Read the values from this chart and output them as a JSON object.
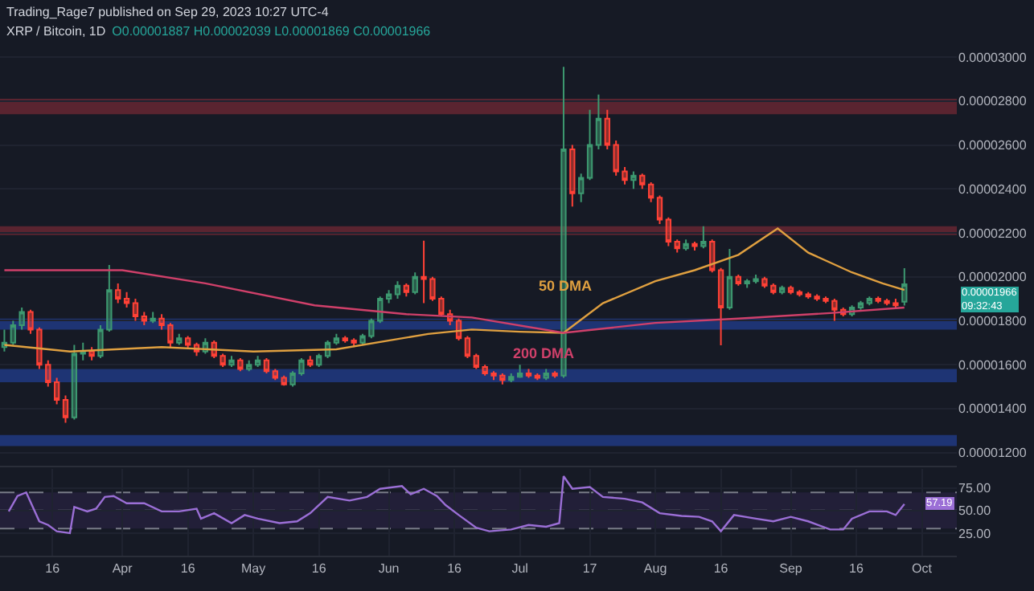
{
  "chart_data": [
    {
      "type": "candlestick",
      "title": "XRP / Bitcoin, 1D",
      "subtitle": "O0.00001887 H0.00002039 L0.00001869 C0.00001966",
      "annotations": [
        "Trading_Rage7 published on Sep 29, 2023 10:27 UTC-4",
        "0.00001966",
        "09:32:43"
      ],
      "xlim": [
        "2023-03-04",
        "2023-10-09"
      ],
      "ylim": [
        1.14e-05,
        3.26e-05
      ],
      "yticks": [
        {
          "value": 1.2e-05,
          "label": "0.00001200"
        },
        {
          "value": 1.4e-05,
          "label": "0.00001400"
        },
        {
          "value": 1.6e-05,
          "label": "0.00001600"
        },
        {
          "value": 1.8e-05,
          "label": "0.00001800"
        },
        {
          "value": 2e-05,
          "label": "0.00002000"
        },
        {
          "value": 2.2e-05,
          "label": "0.00002200"
        },
        {
          "value": 2.4e-05,
          "label": "0.00002400"
        },
        {
          "value": 2.6e-05,
          "label": "0.00002600"
        },
        {
          "value": 2.8e-05,
          "label": "0.00002800"
        },
        {
          "value": 3e-05,
          "label": "0.00003000"
        }
      ],
      "tick_labels": "y",
      "grid": true,
      "bands": [
        {
          "axis": "y",
          "from": 2.74e-05,
          "to": 2.81e-05,
          "color": "#5a2430"
        },
        {
          "axis": "y",
          "from": 2.19e-05,
          "to": 2.23e-05,
          "color": "#5a2430"
        },
        {
          "axis": "y",
          "from": 1.76e-05,
          "to": 1.81e-05,
          "color": "#1e3474"
        },
        {
          "axis": "y",
          "from": 1.52e-05,
          "to": 1.58e-05,
          "color": "#1e3474"
        },
        {
          "axis": "y",
          "from": 1.23e-05,
          "to": 1.28e-05,
          "color": "#1e3474"
        }
      ],
      "series": [
        {
          "x": [
            "2023-03-05",
            "2023-03-07",
            "2023-03-09",
            "2023-03-11",
            "2023-03-13",
            "2023-03-15",
            "2023-03-17",
            "2023-03-19",
            "2023-03-21",
            "2023-03-23",
            "2023-03-25",
            "2023-03-27",
            "2023-03-29",
            "2023-03-31",
            "2023-04-02",
            "2023-04-04",
            "2023-04-06",
            "2023-04-08",
            "2023-04-10",
            "2023-04-12",
            "2023-04-14",
            "2023-04-16",
            "2023-04-18",
            "2023-04-20",
            "2023-04-22",
            "2023-04-24",
            "2023-04-26",
            "2023-04-28",
            "2023-04-30",
            "2023-05-02",
            "2023-05-04",
            "2023-05-06",
            "2023-05-08",
            "2023-05-10",
            "2023-05-12",
            "2023-05-14",
            "2023-05-16",
            "2023-05-18",
            "2023-05-20",
            "2023-05-22",
            "2023-05-24",
            "2023-05-26",
            "2023-05-28",
            "2023-05-30",
            "2023-06-01",
            "2023-06-03",
            "2023-06-05",
            "2023-06-07",
            "2023-06-09",
            "2023-06-11",
            "2023-06-13",
            "2023-06-15",
            "2023-06-17",
            "2023-06-19",
            "2023-06-21",
            "2023-06-23",
            "2023-06-25",
            "2023-06-27",
            "2023-06-29",
            "2023-07-01",
            "2023-07-03",
            "2023-07-05",
            "2023-07-07",
            "2023-07-09",
            "2023-07-11",
            "2023-07-13",
            "2023-07-15",
            "2023-07-17",
            "2023-07-19",
            "2023-07-21",
            "2023-07-23",
            "2023-07-25",
            "2023-07-27",
            "2023-07-29",
            "2023-07-31",
            "2023-08-02",
            "2023-08-04",
            "2023-08-06",
            "2023-08-08",
            "2023-08-10",
            "2023-08-12",
            "2023-08-14",
            "2023-08-16",
            "2023-08-18",
            "2023-08-20",
            "2023-08-22",
            "2023-08-24",
            "2023-08-26",
            "2023-08-28",
            "2023-08-30",
            "2023-09-01",
            "2023-09-03",
            "2023-09-05",
            "2023-09-07",
            "2023-09-09",
            "2023-09-11",
            "2023-09-13",
            "2023-09-15",
            "2023-09-17",
            "2023-09-19",
            "2023-09-21",
            "2023-09-23",
            "2023-09-25",
            "2023-09-27"
          ],
          "ohlc": [
            [
              1.68e-05,
              1.76e-05,
              1.66e-05,
              1.7e-05
            ],
            [
              1.7e-05,
              1.8e-05,
              1.69e-05,
              1.78e-05
            ],
            [
              1.78e-05,
              1.86e-05,
              1.76e-05,
              1.84e-05
            ],
            [
              1.84e-05,
              1.85e-05,
              1.74e-05,
              1.76e-05
            ],
            [
              1.76e-05,
              1.77e-05,
              1.58e-05,
              1.6e-05
            ],
            [
              1.6e-05,
              1.62e-05,
              1.5e-05,
              1.52e-05
            ],
            [
              1.52e-05,
              1.54e-05,
              1.42e-05,
              1.44e-05
            ],
            [
              1.44e-05,
              1.46e-05,
              1.336e-05,
              1.36e-05
            ],
            [
              1.36e-05,
              1.69e-05,
              1.35e-05,
              1.65e-05
            ],
            [
              1.65e-05,
              1.7e-05,
              1.62e-05,
              1.66e-05
            ],
            [
              1.66e-05,
              1.68e-05,
              1.62e-05,
              1.64e-05
            ],
            [
              1.64e-05,
              1.78e-05,
              1.63e-05,
              1.76e-05
            ],
            [
              1.76e-05,
              2.054e-05,
              1.75e-05,
              1.94e-05
            ],
            [
              1.94e-05,
              1.97e-05,
              1.88e-05,
              1.9e-05
            ],
            [
              1.9e-05,
              1.93e-05,
              1.86e-05,
              1.88e-05
            ],
            [
              1.88e-05,
              1.9e-05,
              1.8e-05,
              1.82e-05
            ],
            [
              1.82e-05,
              1.84e-05,
              1.78e-05,
              1.8e-05
            ],
            [
              1.8e-05,
              1.84e-05,
              1.79e-05,
              1.81e-05
            ],
            [
              1.81e-05,
              1.83e-05,
              1.76e-05,
              1.78e-05
            ],
            [
              1.78e-05,
              1.79e-05,
              1.68e-05,
              1.7e-05
            ],
            [
              1.7e-05,
              1.74e-05,
              1.69e-05,
              1.72e-05
            ],
            [
              1.72e-05,
              1.73e-05,
              1.67e-05,
              1.69e-05
            ],
            [
              1.69e-05,
              1.7e-05,
              1.64e-05,
              1.66e-05
            ],
            [
              1.66e-05,
              1.72e-05,
              1.65e-05,
              1.7e-05
            ],
            [
              1.7e-05,
              1.71e-05,
              1.63e-05,
              1.64e-05
            ],
            [
              1.64e-05,
              1.65e-05,
              1.59e-05,
              1.6e-05
            ],
            [
              1.6e-05,
              1.64e-05,
              1.59e-05,
              1.62e-05
            ],
            [
              1.62e-05,
              1.63e-05,
              1.57e-05,
              1.58e-05
            ],
            [
              1.58e-05,
              1.62e-05,
              1.57e-05,
              1.6e-05
            ],
            [
              1.6e-05,
              1.64e-05,
              1.59e-05,
              1.62e-05
            ],
            [
              1.62e-05,
              1.63e-05,
              1.56e-05,
              1.57e-05
            ],
            [
              1.57e-05,
              1.58e-05,
              1.53e-05,
              1.54e-05
            ],
            [
              1.54e-05,
              1.55e-05,
              1.505e-05,
              1.51e-05
            ],
            [
              1.51e-05,
              1.57e-05,
              1.5e-05,
              1.56e-05
            ],
            [
              1.56e-05,
              1.63e-05,
              1.55e-05,
              1.62e-05
            ],
            [
              1.62e-05,
              1.64e-05,
              1.59e-05,
              1.6e-05
            ],
            [
              1.6e-05,
              1.65e-05,
              1.59e-05,
              1.64e-05
            ],
            [
              1.64e-05,
              1.71e-05,
              1.63e-05,
              1.7e-05
            ],
            [
              1.7e-05,
              1.74e-05,
              1.69e-05,
              1.72e-05
            ],
            [
              1.72e-05,
              1.73e-05,
              1.7e-05,
              1.71e-05
            ],
            [
              1.71e-05,
              1.72e-05,
              1.68e-05,
              1.7e-05
            ],
            [
              1.7e-05,
              1.74e-05,
              1.69e-05,
              1.73e-05
            ],
            [
              1.73e-05,
              1.81e-05,
              1.72e-05,
              1.8e-05
            ],
            [
              1.8e-05,
              1.91e-05,
              1.79e-05,
              1.9e-05
            ],
            [
              1.9e-05,
              1.94e-05,
              1.88e-05,
              1.92e-05
            ],
            [
              1.92e-05,
              1.98e-05,
              1.9e-05,
              1.96e-05
            ],
            [
              1.96e-05,
              1.97e-05,
              1.91e-05,
              1.93e-05
            ],
            [
              1.93e-05,
              2.02e-05,
              1.92e-05,
              2e-05
            ],
            [
              2e-05,
              2.164e-05,
              1.88e-05,
              1.99e-05
            ],
            [
              1.99e-05,
              2e-05,
              1.89e-05,
              1.9e-05
            ],
            [
              1.9e-05,
              1.91e-05,
              1.82e-05,
              1.83e-05
            ],
            [
              1.83e-05,
              1.85e-05,
              1.78e-05,
              1.8e-05
            ],
            [
              1.8e-05,
              1.81e-05,
              1.71e-05,
              1.72e-05
            ],
            [
              1.72e-05,
              1.73e-05,
              1.63e-05,
              1.64e-05
            ],
            [
              1.64e-05,
              1.65e-05,
              1.58e-05,
              1.59e-05
            ],
            [
              1.59e-05,
              1.6e-05,
              1.55e-05,
              1.56e-05
            ],
            [
              1.56e-05,
              1.57e-05,
              1.53e-05,
              1.55e-05
            ],
            [
              1.55e-05,
              1.56e-05,
              1.51e-05,
              1.53e-05
            ],
            [
              1.53e-05,
              1.56e-05,
              1.52e-05,
              1.545e-05
            ],
            [
              1.545e-05,
              1.6e-05,
              1.54e-05,
              1.56e-05
            ],
            [
              1.56e-05,
              1.58e-05,
              1.54e-05,
              1.55e-05
            ],
            [
              1.55e-05,
              1.56e-05,
              1.53e-05,
              1.54e-05
            ],
            [
              1.54e-05,
              1.58e-05,
              1.53e-05,
              1.56e-05
            ],
            [
              1.56e-05,
              1.57e-05,
              1.54e-05,
              1.55e-05
            ],
            [
              1.55e-05,
              2.956e-05,
              1.54e-05,
              2.58e-05
            ],
            [
              2.58e-05,
              2.6e-05,
              2.32e-05,
              2.38e-05
            ],
            [
              2.38e-05,
              2.47e-05,
              2.34e-05,
              2.45e-05
            ],
            [
              2.45e-05,
              2.76e-05,
              2.44e-05,
              2.6e-05
            ],
            [
              2.6e-05,
              2.83e-05,
              2.58e-05,
              2.72e-05
            ],
            [
              2.72e-05,
              2.76e-05,
              2.58e-05,
              2.6e-05
            ],
            [
              2.6e-05,
              2.62e-05,
              2.46e-05,
              2.48e-05
            ],
            [
              2.48e-05,
              2.5e-05,
              2.42e-05,
              2.44e-05
            ],
            [
              2.44e-05,
              2.48e-05,
              2.4e-05,
              2.46e-05
            ],
            [
              2.46e-05,
              2.47e-05,
              2.4e-05,
              2.42e-05
            ],
            [
              2.42e-05,
              2.43e-05,
              2.34e-05,
              2.36e-05
            ],
            [
              2.36e-05,
              2.37e-05,
              2.24e-05,
              2.26e-05
            ],
            [
              2.26e-05,
              2.27e-05,
              2.14e-05,
              2.16e-05
            ],
            [
              2.16e-05,
              2.17e-05,
              2.11e-05,
              2.13e-05
            ],
            [
              2.13e-05,
              2.17e-05,
              2.12e-05,
              2.15e-05
            ],
            [
              2.15e-05,
              2.16e-05,
              2.12e-05,
              2.14e-05
            ],
            [
              2.14e-05,
              2.23e-05,
              2.13e-05,
              2.16e-05
            ],
            [
              2.16e-05,
              2.17e-05,
              2.02e-05,
              2.03e-05
            ],
            [
              2.03e-05,
              2.04e-05,
              1.688e-05,
              1.86e-05
            ],
            [
              1.86e-05,
              2.127e-05,
              1.85e-05,
              2e-05
            ],
            [
              2e-05,
              2.01e-05,
              1.96e-05,
              1.97e-05
            ],
            [
              1.97e-05,
              1.99e-05,
              1.95e-05,
              1.98e-05
            ],
            [
              1.98e-05,
              2.01e-05,
              1.97e-05,
              1.99e-05
            ],
            [
              1.99e-05,
              2e-05,
              1.95e-05,
              1.96e-05
            ],
            [
              1.96e-05,
              1.97e-05,
              1.92e-05,
              1.93e-05
            ],
            [
              1.93e-05,
              1.96e-05,
              1.92e-05,
              1.95e-05
            ],
            [
              1.95e-05,
              1.96e-05,
              1.92e-05,
              1.93e-05
            ],
            [
              1.93e-05,
              1.94e-05,
              1.91e-05,
              1.92e-05
            ],
            [
              1.92e-05,
              1.93e-05,
              1.9e-05,
              1.91e-05
            ],
            [
              1.91e-05,
              1.92e-05,
              1.89e-05,
              1.9e-05
            ],
            [
              1.9e-05,
              1.91e-05,
              1.88e-05,
              1.89e-05
            ],
            [
              1.89e-05,
              1.9e-05,
              1.8e-05,
              1.85e-05
            ],
            [
              1.85e-05,
              1.86e-05,
              1.82e-05,
              1.83e-05
            ],
            [
              1.83e-05,
              1.87e-05,
              1.82e-05,
              1.86e-05
            ],
            [
              1.86e-05,
              1.89e-05,
              1.85e-05,
              1.88e-05
            ],
            [
              1.88e-05,
              1.91e-05,
              1.87e-05,
              1.9e-05
            ],
            [
              1.9e-05,
              1.91e-05,
              1.88e-05,
              1.89e-05
            ],
            [
              1.89e-05,
              1.9e-05,
              1.87e-05,
              1.88e-05
            ],
            [
              1.88e-05,
              1.9e-05,
              1.86e-05,
              1.87e-05
            ],
            [
              1.887e-05,
              2.039e-05,
              1.869e-05,
              1.966e-05
            ]
          ]
        },
        {
          "type": "line",
          "name": "50 DMA",
          "color": "#e0a040",
          "x": [
            "2023-03-05",
            "2023-03-20",
            "2023-04-10",
            "2023-05-01",
            "2023-05-20",
            "2023-06-10",
            "2023-06-20",
            "2023-07-01",
            "2023-07-11",
            "2023-07-20",
            "2023-08-01",
            "2023-08-10",
            "2023-08-20",
            "2023-08-29",
            "2023-09-05",
            "2023-09-15",
            "2023-09-22",
            "2023-09-27"
          ],
          "values": [
            1.69e-05,
            1.66e-05,
            1.68e-05,
            1.66e-05,
            1.67e-05,
            1.74e-05,
            1.76e-05,
            1.75e-05,
            1.745e-05,
            1.88e-05,
            1.98e-05,
            2.03e-05,
            2.1e-05,
            2.22e-05,
            2.11e-05,
            2.02e-05,
            1.97e-05,
            1.94e-05
          ]
        },
        {
          "type": "line",
          "name": "200 DMA",
          "color": "#d0406a",
          "x": [
            "2023-03-05",
            "2023-04-01",
            "2023-04-20",
            "2023-05-15",
            "2023-06-05",
            "2023-06-20",
            "2023-07-11",
            "2023-08-01",
            "2023-08-20",
            "2023-09-10",
            "2023-09-27"
          ],
          "values": [
            2.03e-05,
            2.03e-05,
            1.97e-05,
            1.87e-05,
            1.83e-05,
            1.815e-05,
            1.745e-05,
            1.79e-05,
            1.81e-05,
            1.835e-05,
            1.86e-05
          ]
        }
      ]
    },
    {
      "type": "line",
      "annotations": [
        "57.19"
      ],
      "xlim": [
        "2023-03-04",
        "2023-10-09"
      ],
      "xticks": [
        {
          "value": "2023-03-16",
          "label": "16"
        },
        {
          "value": "2023-04-01",
          "label": "Apr"
        },
        {
          "value": "2023-04-16",
          "label": "16"
        },
        {
          "value": "2023-05-01",
          "label": "May"
        },
        {
          "value": "2023-05-16",
          "label": "16"
        },
        {
          "value": "2023-06-01",
          "label": "Jun"
        },
        {
          "value": "2023-06-16",
          "label": "16"
        },
        {
          "value": "2023-07-01",
          "label": "Jul"
        },
        {
          "value": "2023-07-17",
          "label": "17"
        },
        {
          "value": "2023-08-01",
          "label": "Aug"
        },
        {
          "value": "2023-08-16",
          "label": "16"
        },
        {
          "value": "2023-09-01",
          "label": "Sep"
        },
        {
          "value": "2023-09-16",
          "label": "16"
        },
        {
          "value": "2023-10-01",
          "label": "Oct"
        }
      ],
      "ylim": [
        0,
        96
      ],
      "yticks": [
        {
          "value": 25,
          "label": "25.00"
        },
        {
          "value": 50,
          "label": "50.00"
        },
        {
          "value": 75,
          "label": "75.00"
        }
      ],
      "grid": true,
      "bands": [
        {
          "axis": "y",
          "from": 30,
          "to": 70,
          "color": "#221f38"
        }
      ],
      "ref_lines": [
        {
          "axis": "y",
          "value": 70,
          "line_style": "dashed",
          "color": "#787b86"
        },
        {
          "axis": "y",
          "value": 50,
          "line_style": "dashed",
          "color": "#787b86"
        },
        {
          "axis": "y",
          "value": 30,
          "line_style": "dashed",
          "color": "#787b86"
        }
      ],
      "series": [
        {
          "color": "#9b6fd6",
          "x": [
            "2023-03-06",
            "2023-03-08",
            "2023-03-10",
            "2023-03-13",
            "2023-03-15",
            "2023-03-17",
            "2023-03-20",
            "2023-03-21",
            "2023-03-24",
            "2023-03-26",
            "2023-03-28",
            "2023-03-30",
            "2023-04-02",
            "2023-04-06",
            "2023-04-10",
            "2023-04-14",
            "2023-04-18",
            "2023-04-19",
            "2023-04-22",
            "2023-04-26",
            "2023-04-29",
            "2023-05-02",
            "2023-05-07",
            "2023-05-11",
            "2023-05-14",
            "2023-05-18",
            "2023-05-23",
            "2023-05-27",
            "2023-05-30",
            "2023-06-04",
            "2023-06-06",
            "2023-06-09",
            "2023-06-12",
            "2023-06-14",
            "2023-06-17",
            "2023-06-21",
            "2023-06-24",
            "2023-06-29",
            "2023-07-03",
            "2023-07-07",
            "2023-07-10",
            "2023-07-11",
            "2023-07-13",
            "2023-07-17",
            "2023-07-20",
            "2023-07-25",
            "2023-07-29",
            "2023-08-02",
            "2023-08-07",
            "2023-08-11",
            "2023-08-14",
            "2023-08-16",
            "2023-08-19",
            "2023-08-24",
            "2023-08-28",
            "2023-09-01",
            "2023-09-05",
            "2023-09-10",
            "2023-09-13",
            "2023-09-15",
            "2023-09-19",
            "2023-09-23",
            "2023-09-25",
            "2023-09-27"
          ],
          "values": [
            49,
            66,
            70,
            38,
            34,
            27,
            25,
            54,
            49,
            52,
            65,
            66,
            58,
            58,
            49,
            49,
            52,
            41,
            47,
            36,
            45,
            41,
            36,
            38,
            47,
            65,
            61,
            65,
            74,
            77,
            68,
            74,
            66,
            56,
            45,
            31,
            27,
            29,
            34,
            32,
            36,
            88,
            74,
            76,
            65,
            63,
            59,
            47,
            44,
            43,
            38,
            27,
            45,
            41,
            38,
            43,
            38,
            29,
            29,
            41,
            49,
            49,
            45,
            57.19
          ]
        }
      ]
    }
  ]
}
